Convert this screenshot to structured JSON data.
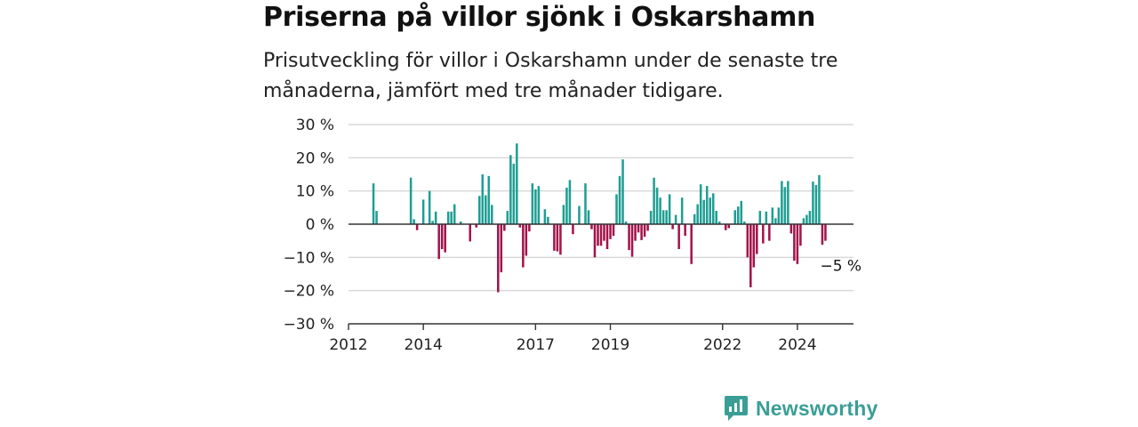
{
  "title": "Priserna på villor sjönk i Oskarshamn",
  "subtitle": "Prisutveckling för villor i Oskarshamn under de senaste tre månaderna, jämfört med tre månader tidigare.",
  "brand": {
    "name": "Newsworthy",
    "icon": "newsworthy-logo-icon",
    "color": "#3a9e96"
  },
  "colors": {
    "positive": "#1f9e94",
    "negative": "#a3134a",
    "grid": "#d9d9d9",
    "axis": "#333333"
  },
  "chart_data": {
    "type": "bar",
    "title": "Priserna på villor sjönk i Oskarshamn",
    "xlabel": "",
    "ylabel": "",
    "ylim": [
      -30,
      30
    ],
    "yticks": [
      30,
      20,
      10,
      0,
      -10,
      -20,
      -30
    ],
    "ytick_labels": [
      "30 %",
      "20 %",
      "10 %",
      "0 %",
      "−10 %",
      "−20 %",
      "−30 %"
    ],
    "xlim": [
      "2012-01",
      "2025-07"
    ],
    "xticks": [
      "2012-01",
      "2014-01",
      "2017-01",
      "2019-01",
      "2022-01",
      "2024-01"
    ],
    "xtick_labels": [
      "2012",
      "2014",
      "2017",
      "2019",
      "2022",
      "2024"
    ],
    "grid": true,
    "annotation": {
      "date": "2025-02",
      "value": -5,
      "text": "−5 %"
    },
    "series": [
      {
        "data": [
          {
            "x": "2012-09",
            "y": 12.3
          },
          {
            "x": "2012-10",
            "y": 4
          },
          {
            "x": "2013-09",
            "y": 14
          },
          {
            "x": "2013-10",
            "y": 1.5
          },
          {
            "x": "2013-11",
            "y": -1.8
          },
          {
            "x": "2014-01",
            "y": 7.4
          },
          {
            "x": "2014-03",
            "y": 10
          },
          {
            "x": "2014-04",
            "y": 1
          },
          {
            "x": "2014-05",
            "y": 3.8
          },
          {
            "x": "2014-06",
            "y": -10.5
          },
          {
            "x": "2014-07",
            "y": -7.5
          },
          {
            "x": "2014-08",
            "y": -8.5
          },
          {
            "x": "2014-09",
            "y": 3.8
          },
          {
            "x": "2014-10",
            "y": 3.8
          },
          {
            "x": "2014-11",
            "y": 6
          },
          {
            "x": "2015-01",
            "y": 0.8
          },
          {
            "x": "2015-04",
            "y": -5.2
          },
          {
            "x": "2015-06",
            "y": -1
          },
          {
            "x": "2015-07",
            "y": 8.5
          },
          {
            "x": "2015-08",
            "y": 15
          },
          {
            "x": "2015-09",
            "y": 8.7
          },
          {
            "x": "2015-10",
            "y": 14.5
          },
          {
            "x": "2015-11",
            "y": 5.8
          },
          {
            "x": "2016-01",
            "y": -20.5
          },
          {
            "x": "2016-02",
            "y": -14.5
          },
          {
            "x": "2016-03",
            "y": -2
          },
          {
            "x": "2016-04",
            "y": 4
          },
          {
            "x": "2016-05",
            "y": 20.8
          },
          {
            "x": "2016-06",
            "y": 18.2
          },
          {
            "x": "2016-07",
            "y": 24.3
          },
          {
            "x": "2016-08",
            "y": -1
          },
          {
            "x": "2016-09",
            "y": -13
          },
          {
            "x": "2016-10",
            "y": -9.5
          },
          {
            "x": "2016-11",
            "y": -2.2
          },
          {
            "x": "2016-12",
            "y": 12.3
          },
          {
            "x": "2017-01",
            "y": 10.5
          },
          {
            "x": "2017-02",
            "y": 11.5
          },
          {
            "x": "2017-04",
            "y": 4.5
          },
          {
            "x": "2017-05",
            "y": 2.2
          },
          {
            "x": "2017-07",
            "y": -8
          },
          {
            "x": "2017-08",
            "y": -8.2
          },
          {
            "x": "2017-09",
            "y": -9.2
          },
          {
            "x": "2017-10",
            "y": 5.8
          },
          {
            "x": "2017-11",
            "y": 11
          },
          {
            "x": "2017-12",
            "y": 13.3
          },
          {
            "x": "2018-01",
            "y": -3
          },
          {
            "x": "2018-03",
            "y": 5.5
          },
          {
            "x": "2018-05",
            "y": 12.3
          },
          {
            "x": "2018-06",
            "y": 4.2
          },
          {
            "x": "2018-07",
            "y": -1.5
          },
          {
            "x": "2018-08",
            "y": -10
          },
          {
            "x": "2018-09",
            "y": -6.5
          },
          {
            "x": "2018-10",
            "y": -6.5
          },
          {
            "x": "2018-11",
            "y": -5
          },
          {
            "x": "2018-12",
            "y": -7.5
          },
          {
            "x": "2019-01",
            "y": -4.5
          },
          {
            "x": "2019-02",
            "y": -3.5
          },
          {
            "x": "2019-03",
            "y": 9
          },
          {
            "x": "2019-04",
            "y": 14.5
          },
          {
            "x": "2019-05",
            "y": 19.5
          },
          {
            "x": "2019-06",
            "y": 0.8
          },
          {
            "x": "2019-07",
            "y": -7.8
          },
          {
            "x": "2019-08",
            "y": -9.8
          },
          {
            "x": "2019-09",
            "y": -5
          },
          {
            "x": "2019-10",
            "y": -2.5
          },
          {
            "x": "2019-11",
            "y": -4.8
          },
          {
            "x": "2019-12",
            "y": -3.8
          },
          {
            "x": "2020-01",
            "y": -2
          },
          {
            "x": "2020-02",
            "y": 4
          },
          {
            "x": "2020-03",
            "y": 14
          },
          {
            "x": "2020-04",
            "y": 11
          },
          {
            "x": "2020-05",
            "y": 8
          },
          {
            "x": "2020-06",
            "y": 4.2
          },
          {
            "x": "2020-07",
            "y": 4.2
          },
          {
            "x": "2020-08",
            "y": 9
          },
          {
            "x": "2020-09",
            "y": -1.5
          },
          {
            "x": "2020-10",
            "y": 2.8
          },
          {
            "x": "2020-11",
            "y": -7.5
          },
          {
            "x": "2020-12",
            "y": 8
          },
          {
            "x": "2021-01",
            "y": -3.5
          },
          {
            "x": "2021-03",
            "y": -12
          },
          {
            "x": "2021-04",
            "y": 3
          },
          {
            "x": "2021-05",
            "y": 6
          },
          {
            "x": "2021-06",
            "y": 12
          },
          {
            "x": "2021-07",
            "y": 7.3
          },
          {
            "x": "2021-08",
            "y": 11.5
          },
          {
            "x": "2021-09",
            "y": 8
          },
          {
            "x": "2021-10",
            "y": 9.3
          },
          {
            "x": "2021-11",
            "y": 4
          },
          {
            "x": "2021-12",
            "y": 0.8
          },
          {
            "x": "2022-02",
            "y": -1.8
          },
          {
            "x": "2022-03",
            "y": -1.2
          },
          {
            "x": "2022-05",
            "y": 4.2
          },
          {
            "x": "2022-06",
            "y": 5.3
          },
          {
            "x": "2022-07",
            "y": 7
          },
          {
            "x": "2022-08",
            "y": 0.8
          },
          {
            "x": "2022-09",
            "y": -10
          },
          {
            "x": "2022-10",
            "y": -19
          },
          {
            "x": "2022-11",
            "y": -13
          },
          {
            "x": "2022-12",
            "y": -9
          },
          {
            "x": "2023-01",
            "y": 4
          },
          {
            "x": "2023-02",
            "y": -5.8
          },
          {
            "x": "2023-03",
            "y": 3.8
          },
          {
            "x": "2023-04",
            "y": -5
          },
          {
            "x": "2023-05",
            "y": 5
          },
          {
            "x": "2023-06",
            "y": 1.8
          },
          {
            "x": "2023-07",
            "y": 5
          },
          {
            "x": "2023-08",
            "y": 13
          },
          {
            "x": "2023-09",
            "y": 11.2
          },
          {
            "x": "2023-10",
            "y": 13
          },
          {
            "x": "2023-11",
            "y": -2.8
          },
          {
            "x": "2023-12",
            "y": -11
          },
          {
            "x": "2024-01",
            "y": -12
          },
          {
            "x": "2024-02",
            "y": -6.5
          },
          {
            "x": "2024-03",
            "y": 1.8
          },
          {
            "x": "2024-04",
            "y": 2.8
          },
          {
            "x": "2024-05",
            "y": 4
          },
          {
            "x": "2024-06",
            "y": 12.8
          },
          {
            "x": "2024-07",
            "y": 11.8
          },
          {
            "x": "2024-08",
            "y": 14.8
          },
          {
            "x": "2024-09",
            "y": -6.2
          },
          {
            "x": "2024-10",
            "y": -5
          }
        ]
      }
    ]
  }
}
